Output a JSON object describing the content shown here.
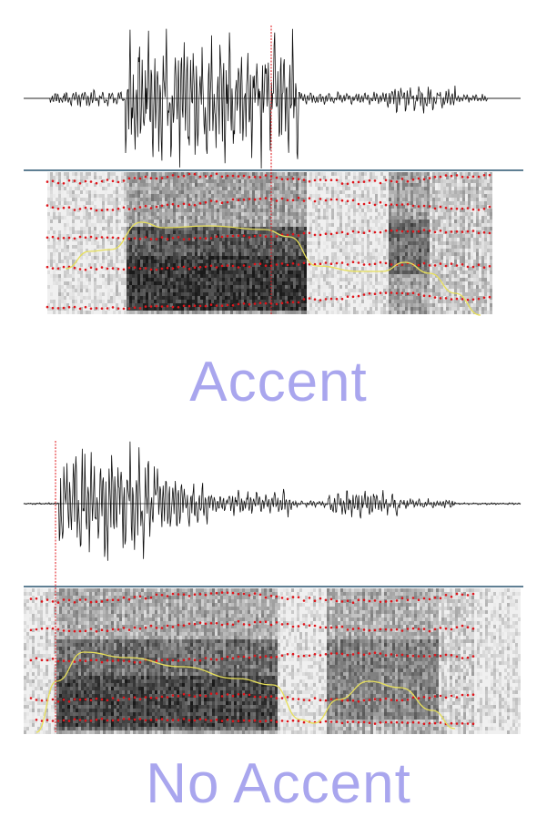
{
  "colors": {
    "caption": "#a9a6ee",
    "waveform": "#111111",
    "baseline": "#6b6b6b",
    "divider": "#5f7f93",
    "pitch_contour": "#e8e05a",
    "formant_dots": "#e0141a",
    "cursor_line": "#e0141a",
    "spectrogram_light": "#f0f0f0",
    "spectrogram_dark": "#1c1c1c"
  },
  "panels": [
    {
      "caption": "Accent",
      "icons": [
        "waveform",
        "spectrogram",
        "pitch-contour",
        "formant-tracks",
        "cursor-line"
      ]
    },
    {
      "caption": "No Accent",
      "icons": [
        "waveform",
        "spectrogram",
        "pitch-contour",
        "formant-tracks",
        "cursor-line"
      ]
    }
  ]
}
